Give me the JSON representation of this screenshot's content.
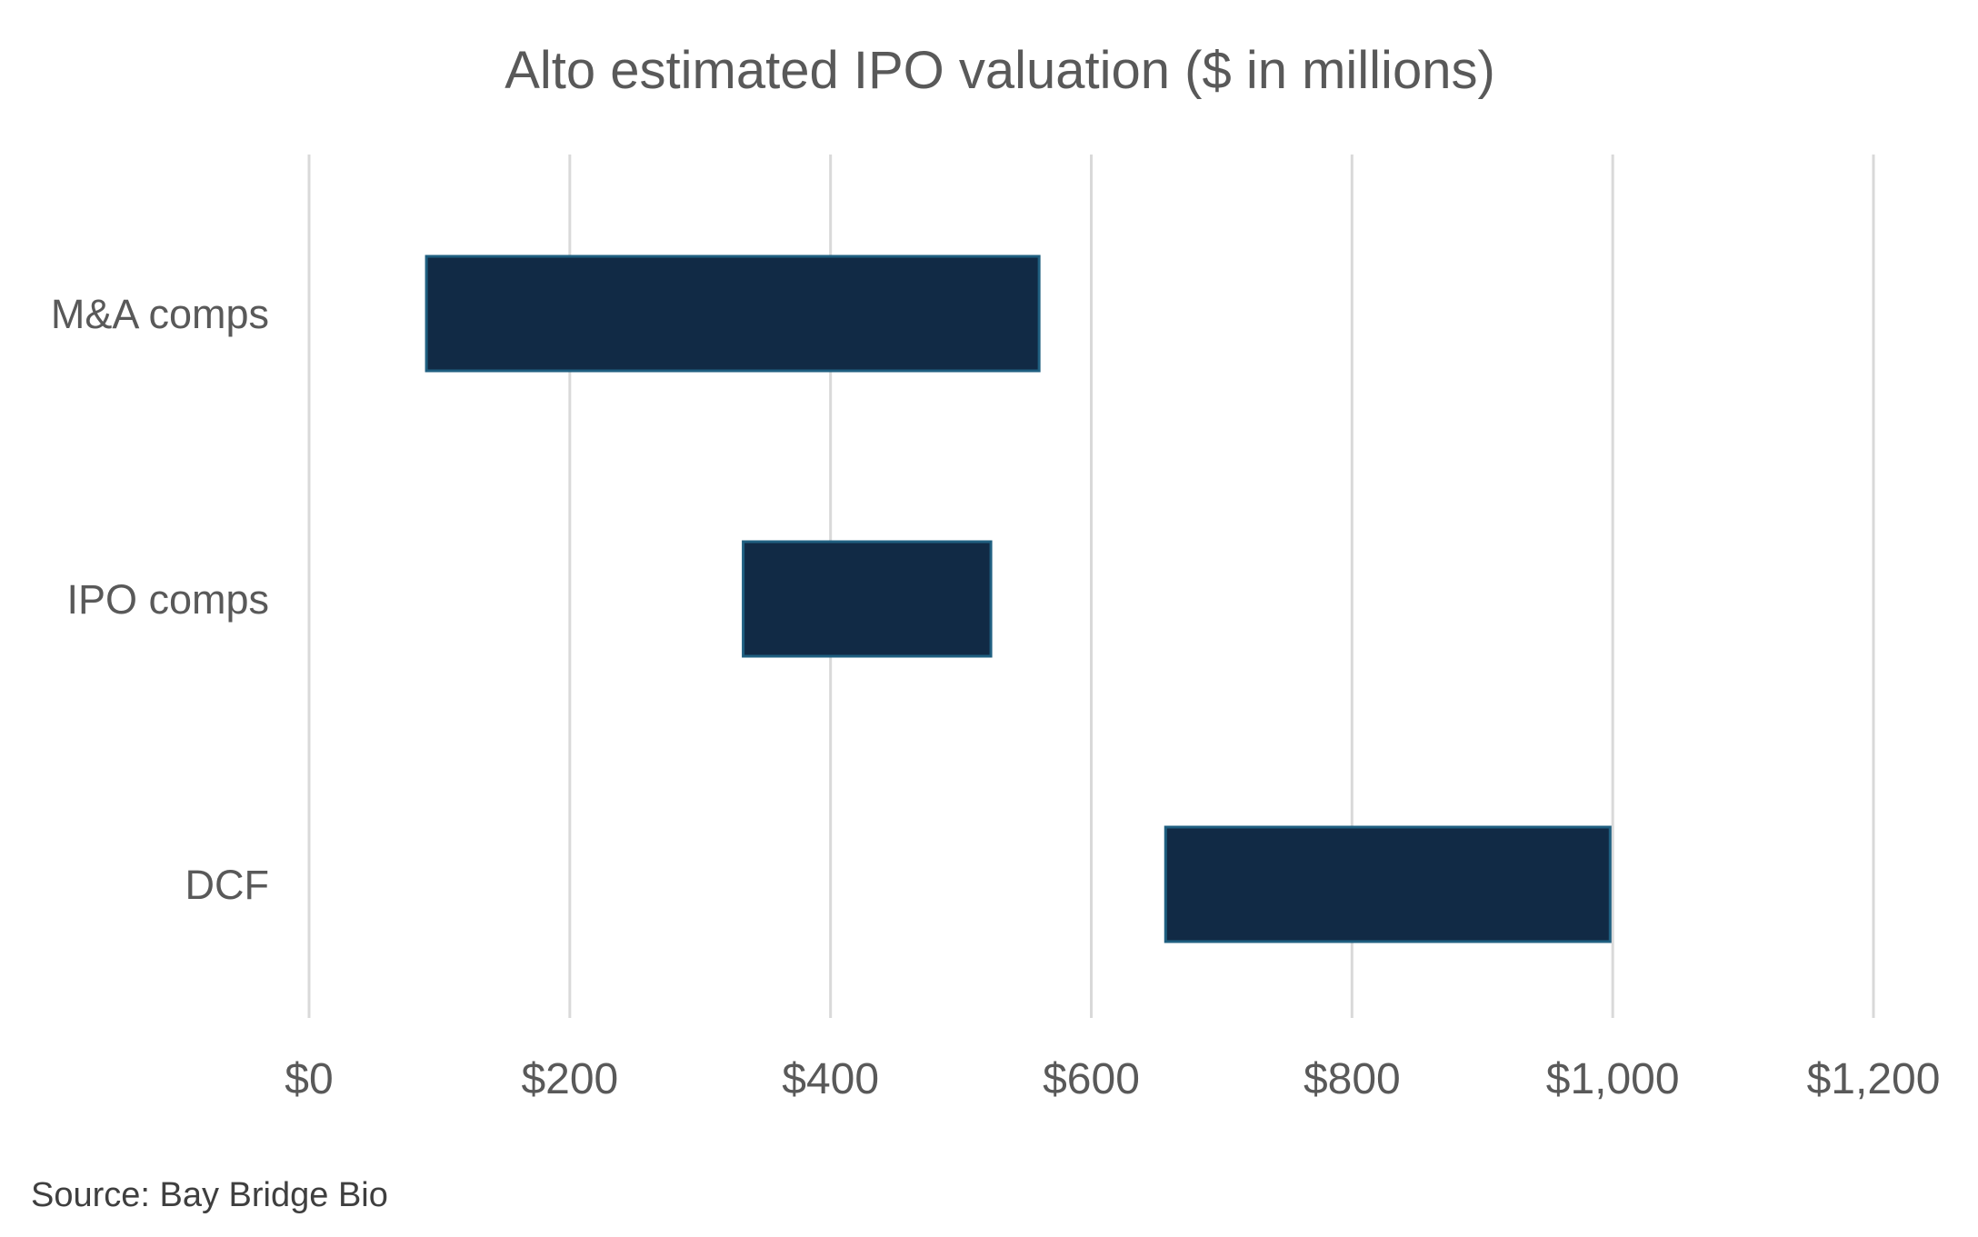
{
  "chart_data": {
    "type": "bar",
    "orientation": "horizontal",
    "subtype": "floating-range",
    "title": "Alto estimated IPO valuation ($ in millions)",
    "xlabel": "",
    "ylabel": "",
    "categories": [
      "M&A comps",
      "IPO comps",
      "DCF"
    ],
    "ranges": [
      {
        "category": "M&A comps",
        "low": 90,
        "high": 560
      },
      {
        "category": "IPO comps",
        "low": 333,
        "high": 523
      },
      {
        "category": "DCF",
        "low": 657,
        "high": 998
      }
    ],
    "xlim": [
      0,
      1200
    ],
    "x_ticks": [
      0,
      200,
      400,
      600,
      800,
      1000,
      1200
    ],
    "x_tick_labels": [
      "$0",
      "$200",
      "$400",
      "$600",
      "$800",
      "$1,000",
      "$1,200"
    ],
    "grid": "vertical",
    "legend": "none",
    "colors": {
      "bar_fill": "#112a45",
      "bar_stroke": "#1f5f80",
      "grid": "#d9d9d9",
      "text": "#595959"
    },
    "source": "Source: Bay Bridge Bio"
  }
}
